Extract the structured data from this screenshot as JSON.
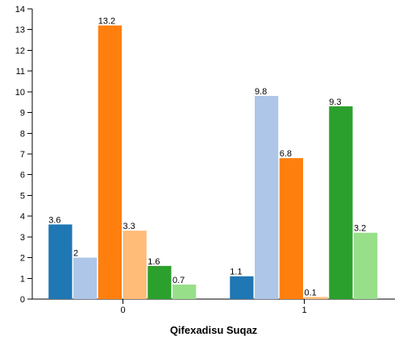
{
  "chart_data": {
    "type": "bar",
    "title": "",
    "xlabel": "Qifexadisu Suqaz",
    "ylabel": "",
    "ylim": [
      0,
      14
    ],
    "yticks": [
      0,
      1,
      2,
      3,
      4,
      5,
      6,
      7,
      8,
      9,
      10,
      11,
      12,
      13,
      14
    ],
    "categories": [
      "0",
      "1"
    ],
    "grid": false,
    "legend": "none",
    "series": [
      {
        "color": "#1f77b4",
        "values": [
          3.6,
          1.1
        ]
      },
      {
        "color": "#aec7e8",
        "values": [
          2,
          9.8
        ]
      },
      {
        "color": "#ff7f0e",
        "values": [
          13.2,
          6.8
        ]
      },
      {
        "color": "#ffbb78",
        "values": [
          3.3,
          0.1
        ]
      },
      {
        "color": "#2ca02c",
        "values": [
          1.6,
          9.3
        ]
      },
      {
        "color": "#98df8a",
        "values": [
          0.7,
          3.2
        ]
      }
    ]
  }
}
